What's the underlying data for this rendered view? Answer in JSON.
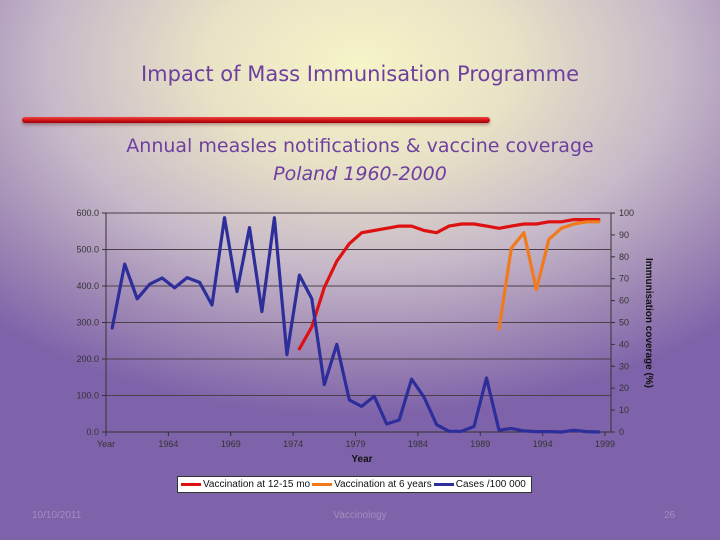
{
  "slide": {
    "title": "Impact of Mass Immunisation Programme",
    "subtitle_line1": "Annual measles notifications & vaccine coverage",
    "subtitle_line2": "Poland 1960-2000"
  },
  "footer": {
    "date": "10/10/2011",
    "center": "Vaccinology",
    "page": "26"
  },
  "colors": {
    "vaccination_12_15": "#dd1111",
    "vaccination_6y": "#f07a1c",
    "cases": "#2e2e9a",
    "title": "#6f3fa0"
  },
  "chart_data": {
    "type": "line",
    "title": "Annual measles notifications & vaccine coverage, Poland 1960-2000",
    "xlabel": "Year",
    "ylabel": "",
    "y2label": "Immunisation coverage (%)",
    "ylim": [
      0,
      600
    ],
    "y2lim": [
      0,
      100
    ],
    "yticks": [
      "0.0",
      "100.0",
      "200.0",
      "300.0",
      "400.0",
      "500.0",
      "600.0"
    ],
    "y2ticks": [
      "0",
      "10",
      "20",
      "30",
      "40",
      "50",
      "60",
      "70",
      "80",
      "90",
      "100"
    ],
    "xtick_labels": [
      "Year",
      "1964",
      "1969",
      "1974",
      "1979",
      "1984",
      "1989",
      "1994",
      "1999"
    ],
    "grid": true,
    "legend_position": "bottom",
    "x": [
      1960,
      1961,
      1962,
      1963,
      1964,
      1965,
      1966,
      1967,
      1968,
      1969,
      1970,
      1971,
      1972,
      1973,
      1974,
      1975,
      1976,
      1977,
      1978,
      1979,
      1980,
      1981,
      1982,
      1983,
      1984,
      1985,
      1986,
      1987,
      1988,
      1989,
      1990,
      1991,
      1992,
      1993,
      1994,
      1995,
      1996,
      1997,
      1998,
      1999
    ],
    "series": [
      {
        "name": "Vaccination at 12-15 mo",
        "axis": "right",
        "color": "#dd1111",
        "values": [
          null,
          null,
          null,
          null,
          null,
          null,
          null,
          null,
          null,
          null,
          null,
          null,
          null,
          null,
          null,
          38,
          48,
          66,
          78,
          86,
          91,
          92,
          93,
          94,
          94,
          92,
          91,
          94,
          95,
          95,
          94,
          93,
          94,
          95,
          95,
          96,
          96,
          97,
          97,
          97
        ]
      },
      {
        "name": "Vaccination at 6 years",
        "axis": "right",
        "color": "#f07a1c",
        "values": [
          null,
          null,
          null,
          null,
          null,
          null,
          null,
          null,
          null,
          null,
          null,
          null,
          null,
          null,
          null,
          null,
          null,
          null,
          null,
          null,
          null,
          null,
          null,
          null,
          null,
          null,
          null,
          null,
          null,
          null,
          null,
          47,
          84,
          91,
          65,
          88,
          93,
          95,
          96,
          96
        ]
      },
      {
        "name": "Cases /100 000",
        "axis": "left",
        "color": "#2e2e9a",
        "values": [
          285,
          460,
          365,
          405,
          422,
          395,
          423,
          410,
          348,
          587,
          385,
          560,
          330,
          587,
          212,
          430,
          365,
          130,
          240,
          88,
          70,
          98,
          22,
          33,
          145,
          95,
          20,
          2,
          2,
          15,
          148,
          5,
          10,
          3,
          1,
          1,
          0,
          5,
          1,
          0
        ]
      }
    ]
  }
}
